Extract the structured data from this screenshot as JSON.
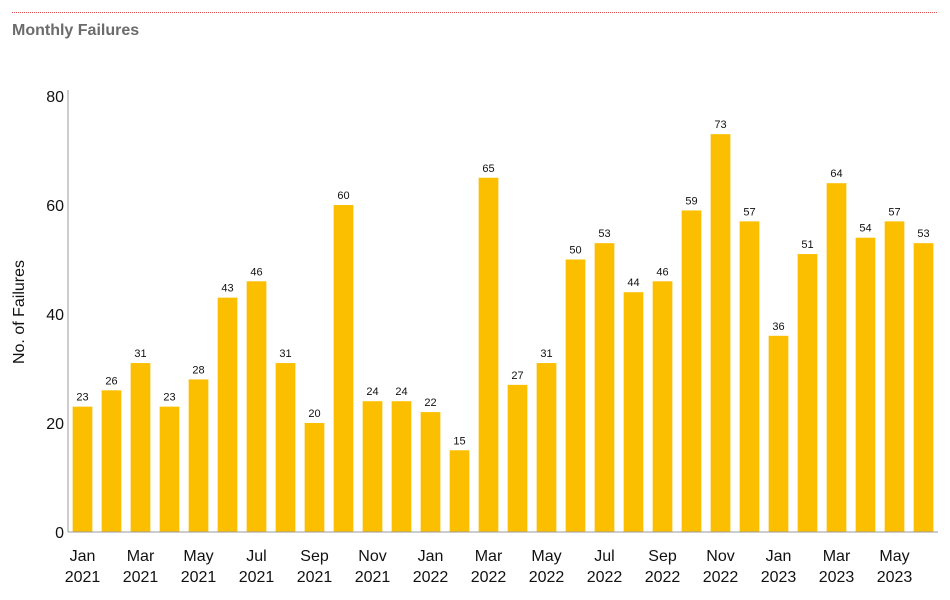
{
  "chart_data": {
    "type": "bar",
    "title": "Monthly Failures",
    "xlabel": "",
    "ylabel": "No. of Failures",
    "ylim": [
      0,
      80
    ],
    "yticks": [
      0,
      20,
      40,
      60,
      80
    ],
    "bar_color": "#FBBF00",
    "categories": [
      "Jan 2021",
      "Feb 2021",
      "Mar 2021",
      "Apr 2021",
      "May 2021",
      "Jun 2021",
      "Jul 2021",
      "Aug 2021",
      "Sep 2021",
      "Oct 2021",
      "Nov 2021",
      "Dec 2021",
      "Jan 2022",
      "Feb 2022",
      "Mar 2022",
      "Apr 2022",
      "May 2022",
      "Jun 2022",
      "Jul 2022",
      "Aug 2022",
      "Sep 2022",
      "Oct 2022",
      "Nov 2022",
      "Dec 2022",
      "Jan 2023",
      "Feb 2023",
      "Mar 2023",
      "Apr 2023",
      "May 2023",
      "Jun 2023"
    ],
    "values": [
      23,
      26,
      31,
      23,
      28,
      43,
      46,
      31,
      20,
      60,
      24,
      24,
      22,
      15,
      65,
      27,
      31,
      50,
      53,
      44,
      46,
      59,
      73,
      57,
      36,
      51,
      64,
      54,
      57,
      53
    ],
    "xtick_labels": [
      {
        "index": 0,
        "month": "Jan",
        "year": "2021"
      },
      {
        "index": 2,
        "month": "Mar",
        "year": "2021"
      },
      {
        "index": 4,
        "month": "May",
        "year": "2021"
      },
      {
        "index": 6,
        "month": "Jul",
        "year": "2021"
      },
      {
        "index": 8,
        "month": "Sep",
        "year": "2021"
      },
      {
        "index": 10,
        "month": "Nov",
        "year": "2021"
      },
      {
        "index": 12,
        "month": "Jan",
        "year": "2022"
      },
      {
        "index": 14,
        "month": "Mar",
        "year": "2022"
      },
      {
        "index": 16,
        "month": "May",
        "year": "2022"
      },
      {
        "index": 18,
        "month": "Jul",
        "year": "2022"
      },
      {
        "index": 20,
        "month": "Sep",
        "year": "2022"
      },
      {
        "index": 22,
        "month": "Nov",
        "year": "2022"
      },
      {
        "index": 24,
        "month": "Jan",
        "year": "2023"
      },
      {
        "index": 26,
        "month": "Mar",
        "year": "2023"
      },
      {
        "index": 28,
        "month": "May",
        "year": "2023"
      }
    ]
  }
}
